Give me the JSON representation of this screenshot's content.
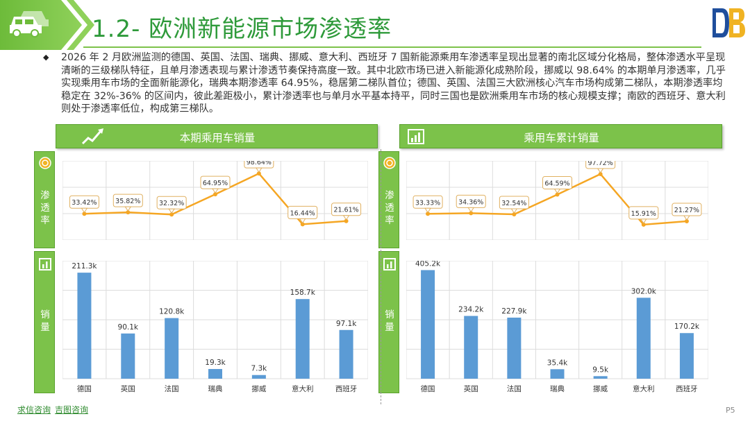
{
  "header": {
    "title": "1.2- 欧洲新能源市场渗透率",
    "logo_text": "DB"
  },
  "summary": "2026 年 2 月欧洲监测的德国、英国、法国、瑞典、挪威、意大利、西班牙 7 国新能源乘用车渗透率呈现出显著的南北区域分化格局，整体渗透水平呈现清晰的三级梯队特征，且单月渗透表现与累计渗透节奏保持高度一致。其中北欧市场已进入新能源化成熟阶段，挪威以 98.64% 的本期单月渗透率，几乎实现乘用车市场的全面新能源化，瑞典本期渗透率 64.95%，稳居第二梯队首位；德国、英国、法国三大欧洲核心汽车市场构成第二梯队，本期渗透率均稳定在 32%-36% 的区间内，彼此差距极小，累计渗透率也与单月水平基本持平，同时三国也是欧洲乘用车市场的核心规模支撑；南欧的西班牙、意大利则处于渗透率低位，构成第三梯队。",
  "left_panel": {
    "title": "本期乘用车销量"
  },
  "right_panel": {
    "title": "乘用车累计销量"
  },
  "side_labels": {
    "rate": "渗透率",
    "sales": "销量"
  },
  "colors": {
    "accent_green": "#7cc24a",
    "title_green": "#2e9a3a",
    "line": "#f5a623",
    "bar": "#5b9bd5"
  },
  "chart_data": [
    {
      "type": "line",
      "panel": "本期乘用车销量",
      "categories": [
        "德国",
        "英国",
        "法国",
        "瑞典",
        "挪威",
        "意大利",
        "西班牙"
      ],
      "values": [
        33.42,
        35.82,
        32.32,
        64.95,
        98.64,
        16.44,
        21.61
      ],
      "labels": [
        "33.42%",
        "35.82%",
        "32.32%",
        "64.95%",
        "98.64%",
        "16.44%",
        "21.61%"
      ],
      "ylim": [
        0,
        110
      ],
      "grid": true
    },
    {
      "type": "bar",
      "panel": "本期乘用车销量",
      "categories": [
        "德国",
        "英国",
        "法国",
        "瑞典",
        "挪威",
        "意大利",
        "西班牙"
      ],
      "values": [
        211.3,
        90.1,
        120.8,
        19.3,
        7.3,
        158.7,
        97.1
      ],
      "labels": [
        "211.3k",
        "90.1k",
        "120.8k",
        "19.3k",
        "7.3k",
        "158.7k",
        "97.1k"
      ],
      "ylim": [
        0,
        235
      ],
      "grid": true
    },
    {
      "type": "line",
      "panel": "乘用车累计销量",
      "categories": [
        "德国",
        "英国",
        "法国",
        "瑞典",
        "挪威",
        "意大利",
        "西班牙"
      ],
      "values": [
        33.33,
        34.36,
        32.54,
        64.59,
        97.72,
        15.91,
        21.27
      ],
      "labels": [
        "33.33%",
        "34.36%",
        "32.54%",
        "64.59%",
        "97.72%",
        "15.91%",
        "21.27%"
      ],
      "ylim": [
        0,
        110
      ],
      "grid": true
    },
    {
      "type": "bar",
      "panel": "乘用车累计销量",
      "categories": [
        "德国",
        "英国",
        "法国",
        "瑞典",
        "挪威",
        "意大利",
        "西班牙"
      ],
      "values": [
        405.2,
        234.2,
        227.9,
        35.4,
        9.5,
        302.0,
        170.2
      ],
      "labels": [
        "405.2k",
        "234.2k",
        "227.9k",
        "35.4k",
        "9.5k",
        "302.0k",
        "170.2k"
      ],
      "ylim": [
        0,
        440
      ],
      "grid": true
    }
  ],
  "footer": {
    "link1": "求信咨询",
    "link2": "吉图咨询",
    "page": "P5"
  }
}
